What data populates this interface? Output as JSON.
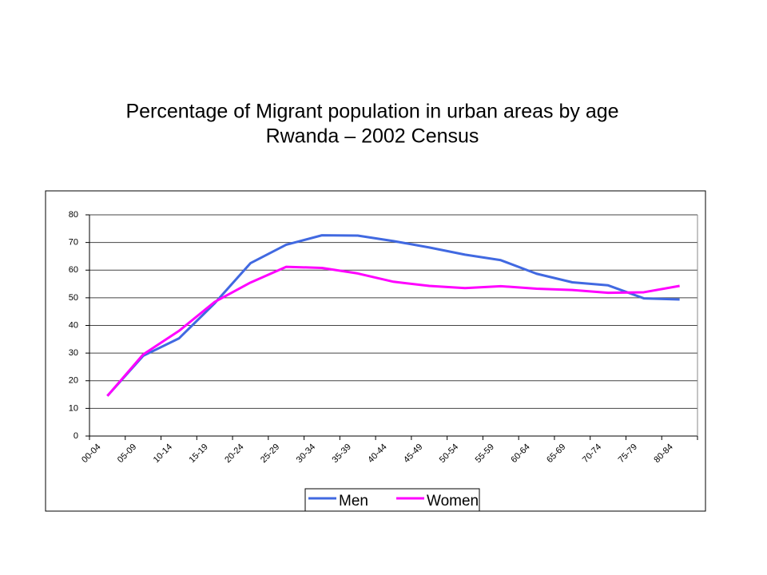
{
  "chart_data": {
    "type": "line",
    "title": "Percentage of Migrant population in urban areas by age",
    "subtitle": "Rwanda – 2002 Census",
    "categories": [
      "00-04",
      "05-09",
      "10-14",
      "15-19",
      "20-24",
      "25-29",
      "30-34",
      "35-39",
      "40-44",
      "45-49",
      "50-54",
      "55-59",
      "60-64",
      "65-69",
      "70-74",
      "75-79",
      "80-84"
    ],
    "series": [
      {
        "name": "Men",
        "color": "#4169e1",
        "values": [
          14.5,
          29,
          35.3,
          48,
          62.5,
          69.2,
          72.6,
          72.5,
          70.5,
          68.2,
          65.6,
          63.6,
          58.7,
          55.6,
          54.5,
          49.8,
          49.4
        ]
      },
      {
        "name": "Women",
        "color": "#ff00ff",
        "values": [
          14.5,
          29.5,
          38,
          48.5,
          55.5,
          61.2,
          60.8,
          58.8,
          55.8,
          54.3,
          53.5,
          54.2,
          53.3,
          52.8,
          51.8,
          52,
          54.3
        ]
      }
    ],
    "ylim": [
      0,
      80
    ],
    "yticks": [
      0,
      10,
      20,
      30,
      40,
      50,
      60,
      70,
      80
    ],
    "grid": true,
    "legend": "bottom"
  }
}
